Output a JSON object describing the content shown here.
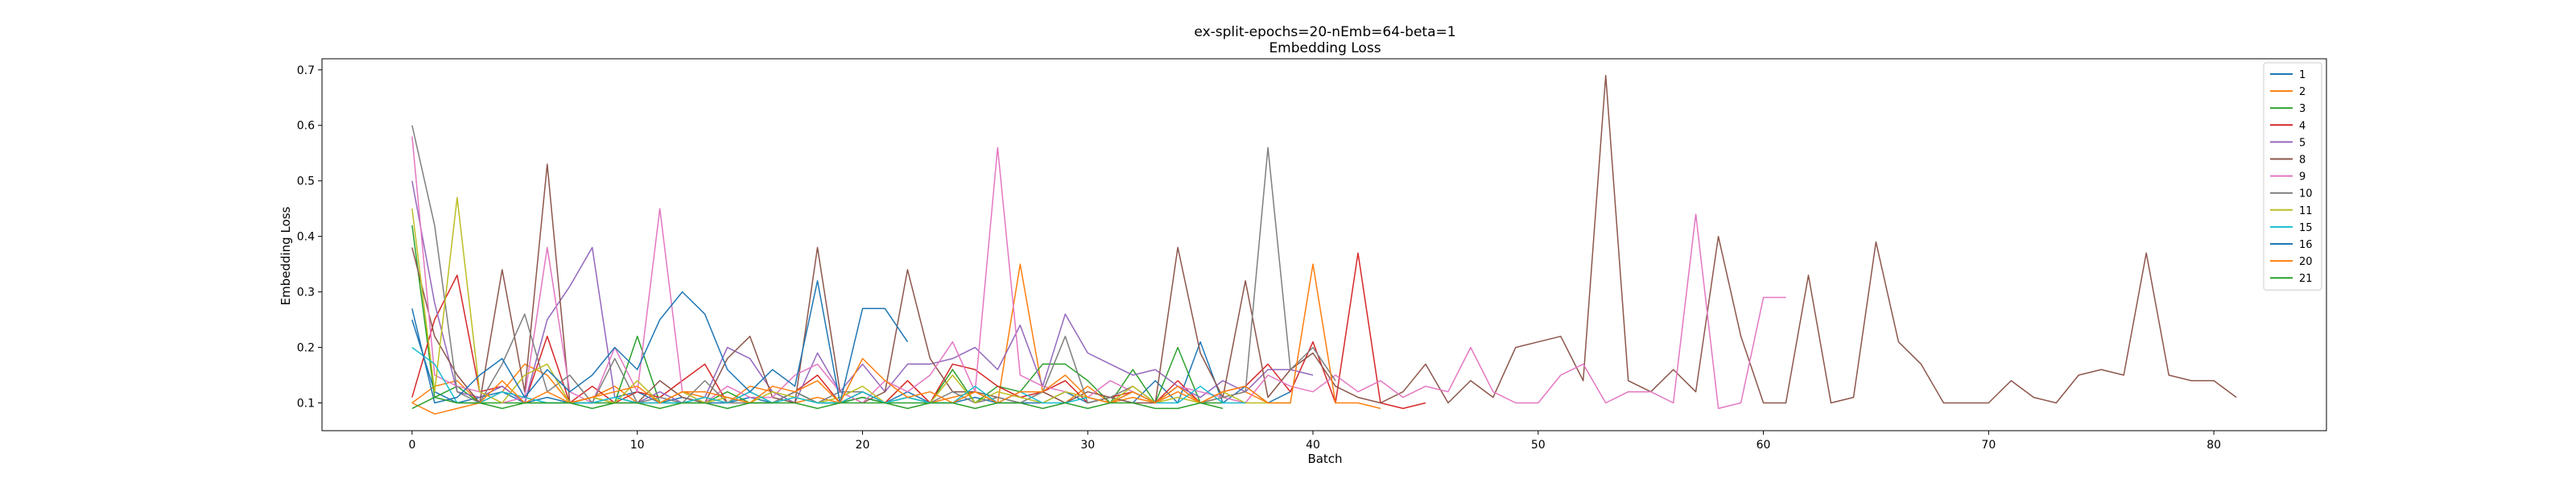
{
  "chart_data": {
    "type": "line",
    "title": "ex-split-epochs=20-nEmb=64-beta=1",
    "subtitle": "Embedding Loss",
    "xlabel": "Batch",
    "ylabel": "Embedding Loss",
    "xlim": [
      -4,
      85
    ],
    "ylim": [
      0.05,
      0.72
    ],
    "xticks": [
      0,
      10,
      20,
      30,
      40,
      50,
      60,
      70,
      80
    ],
    "yticks": [
      0.1,
      0.2,
      0.3,
      0.4,
      0.5,
      0.6,
      0.7
    ],
    "legend_position": "top-right",
    "series": [
      {
        "name": "1",
        "color": "#1f77b4",
        "values": [
          0.25,
          0.12,
          0.1,
          0.11,
          0.12,
          0.1,
          0.11,
          0.1,
          0.1,
          0.11,
          0.12,
          0.1,
          0.11,
          0.1,
          0.1,
          0.11,
          0.1,
          0.12,
          0.1,
          0.1,
          0.11,
          0.1,
          0.12,
          0.1,
          0.1,
          0.11,
          0.1,
          0.1,
          0.1,
          0.12,
          0.1,
          0.11,
          0.1,
          0.14,
          0.1,
          0.21,
          0.1,
          0.13,
          0.1,
          0.12
        ]
      },
      {
        "name": "2",
        "color": "#ff7f0e",
        "values": [
          0.1,
          0.13,
          0.14,
          0.1,
          0.12,
          0.17,
          0.15,
          0.1,
          0.11,
          0.13,
          0.1,
          0.1,
          0.12,
          0.11,
          0.1,
          0.13,
          0.12,
          0.1,
          0.11,
          0.1,
          0.12,
          0.1,
          0.14,
          0.1,
          0.11,
          0.12,
          0.1,
          0.35,
          0.12,
          0.1,
          0.13,
          0.1,
          0.11,
          0.1,
          0.12,
          0.1,
          0.11,
          0.12,
          0.1
        ]
      },
      {
        "name": "3",
        "color": "#2ca02c",
        "values": [
          0.42,
          0.11,
          0.13,
          0.1,
          0.1,
          0.1,
          0.1,
          0.1,
          0.1,
          0.1,
          0.22,
          0.1,
          0.1,
          0.1,
          0.12,
          0.1,
          0.1,
          0.12,
          0.1,
          0.1,
          0.11,
          0.1,
          0.1,
          0.1,
          0.16,
          0.1,
          0.13,
          0.12,
          0.17,
          0.17,
          0.14,
          0.1,
          0.16,
          0.1,
          0.2,
          0.1,
          0.1
        ]
      },
      {
        "name": "4",
        "color": "#d62728",
        "values": [
          0.11,
          0.25,
          0.33,
          0.12,
          0.13,
          0.1,
          0.22,
          0.1,
          0.13,
          0.1,
          0.12,
          0.11,
          0.14,
          0.17,
          0.1,
          0.12,
          0.1,
          0.12,
          0.15,
          0.1,
          0.12,
          0.1,
          0.14,
          0.1,
          0.17,
          0.16,
          0.13,
          0.11,
          0.12,
          0.14,
          0.1,
          0.11,
          0.12,
          0.1,
          0.14,
          0.1,
          0.12,
          0.13,
          0.17,
          0.12,
          0.21,
          0.1,
          0.37,
          0.1,
          0.09,
          0.1
        ]
      },
      {
        "name": "5",
        "color": "#9467bd",
        "values": [
          0.5,
          0.28,
          0.12,
          0.11,
          0.13,
          0.1,
          0.25,
          0.31,
          0.38,
          0.11,
          0.1,
          0.12,
          0.1,
          0.11,
          0.2,
          0.18,
          0.12,
          0.1,
          0.19,
          0.12,
          0.17,
          0.12,
          0.17,
          0.17,
          0.18,
          0.2,
          0.16,
          0.24,
          0.13,
          0.26,
          0.19,
          0.17,
          0.15,
          0.16,
          0.13,
          0.11,
          0.14,
          0.12,
          0.16,
          0.16,
          0.15
        ]
      },
      {
        "name": "8",
        "color": "#8c564b",
        "values": [
          0.38,
          0.22,
          0.15,
          0.1,
          0.34,
          0.12,
          0.53,
          0.1,
          0.11,
          0.1,
          0.1,
          0.14,
          0.11,
          0.1,
          0.18,
          0.22,
          0.11,
          0.1,
          0.38,
          0.12,
          0.1,
          0.12,
          0.34,
          0.18,
          0.12,
          0.12,
          0.11,
          0.1,
          0.12,
          0.1,
          0.12,
          0.11,
          0.1,
          0.1,
          0.38,
          0.19,
          0.11,
          0.32,
          0.11,
          0.16,
          0.19,
          0.13,
          0.11,
          0.1,
          0.12,
          0.17,
          0.1,
          0.14,
          0.11,
          0.2,
          0.21,
          0.22,
          0.14,
          0.69,
          0.14,
          0.12,
          0.16,
          0.12,
          0.4,
          0.22,
          0.1,
          0.1,
          0.33,
          0.1,
          0.11,
          0.39,
          0.21,
          0.17,
          0.1,
          0.1,
          0.1,
          0.14,
          0.11,
          0.1,
          0.15,
          0.16,
          0.15,
          0.37,
          0.15,
          0.14,
          0.14,
          0.11
        ]
      },
      {
        "name": "9",
        "color": "#e377c2",
        "values": [
          0.58,
          0.15,
          0.13,
          0.12,
          0.1,
          0.11,
          0.38,
          0.12,
          0.1,
          0.2,
          0.12,
          0.45,
          0.12,
          0.1,
          0.13,
          0.11,
          0.11,
          0.15,
          0.17,
          0.12,
          0.1,
          0.14,
          0.12,
          0.15,
          0.21,
          0.12,
          0.56,
          0.15,
          0.13,
          0.12,
          0.11,
          0.14,
          0.12,
          0.1,
          0.13,
          0.12,
          0.11,
          0.1,
          0.15,
          0.13,
          0.12,
          0.15,
          0.12,
          0.14,
          0.11,
          0.13,
          0.12,
          0.2,
          0.12,
          0.1,
          0.1,
          0.15,
          0.17,
          0.1,
          0.12,
          0.12,
          0.1,
          0.44,
          0.09,
          0.1,
          0.29,
          0.29
        ]
      },
      {
        "name": "10",
        "color": "#7f7f7f",
        "values": [
          0.6,
          0.42,
          0.12,
          0.1,
          0.17,
          0.26,
          0.12,
          0.15,
          0.1,
          0.18,
          0.1,
          0.11,
          0.1,
          0.14,
          0.1,
          0.1,
          0.1,
          0.12,
          0.1,
          0.12,
          0.12,
          0.1,
          0.11,
          0.1,
          0.12,
          0.1,
          0.11,
          0.1,
          0.12,
          0.22,
          0.1,
          0.11,
          0.13,
          0.1,
          0.13,
          0.1,
          0.11,
          0.12,
          0.56,
          0.16,
          0.2,
          0.14
        ]
      },
      {
        "name": "11",
        "color": "#bcbd22",
        "values": [
          0.45,
          0.12,
          0.47,
          0.12,
          0.1,
          0.15,
          0.17,
          0.1,
          0.11,
          0.1,
          0.14,
          0.1,
          0.12,
          0.1,
          0.11,
          0.1,
          0.12,
          0.11,
          0.1,
          0.11,
          0.13,
          0.1,
          0.11,
          0.1,
          0.15,
          0.1,
          0.12,
          0.11,
          0.1,
          0.12,
          0.11,
          0.1,
          0.13,
          0.1,
          0.11,
          0.1,
          0.12,
          0.1,
          0.1,
          0.1
        ]
      },
      {
        "name": "15",
        "color": "#17becf",
        "values": [
          0.2,
          0.17,
          0.1,
          0.1,
          0.12,
          0.11,
          0.1,
          0.1,
          0.1,
          0.11,
          0.1,
          0.1,
          0.1,
          0.11,
          0.1,
          0.12,
          0.1,
          0.11,
          0.1,
          0.1,
          0.12,
          0.1,
          0.11,
          0.1,
          0.1,
          0.13,
          0.1,
          0.12,
          0.1,
          0.1,
          0.11,
          0.1,
          0.12,
          0.1,
          0.1,
          0.13,
          0.1,
          0.1
        ]
      },
      {
        "name": "16",
        "color": "#1f77b4",
        "values": [
          0.27,
          0.1,
          0.11,
          0.15,
          0.18,
          0.11,
          0.16,
          0.12,
          0.15,
          0.2,
          0.16,
          0.25,
          0.3,
          0.26,
          0.16,
          0.12,
          0.16,
          0.13,
          0.32,
          0.1,
          0.27,
          0.27,
          0.21
        ]
      },
      {
        "name": "20",
        "color": "#ff7f0e",
        "values": [
          0.1,
          0.08,
          0.09,
          0.1,
          0.14,
          0.1,
          0.12,
          0.1,
          0.11,
          0.12,
          0.13,
          0.1,
          0.12,
          0.12,
          0.11,
          0.1,
          0.13,
          0.12,
          0.14,
          0.1,
          0.18,
          0.14,
          0.11,
          0.12,
          0.1,
          0.12,
          0.1,
          0.12,
          0.12,
          0.15,
          0.11,
          0.1,
          0.12,
          0.1,
          0.13,
          0.1,
          0.12,
          0.13,
          0.1,
          0.1,
          0.35,
          0.1,
          0.1,
          0.09
        ]
      },
      {
        "name": "21",
        "color": "#2ca02c",
        "values": [
          0.09,
          0.11,
          0.1,
          0.1,
          0.09,
          0.1,
          0.1,
          0.1,
          0.09,
          0.1,
          0.1,
          0.09,
          0.1,
          0.1,
          0.09,
          0.1,
          0.1,
          0.1,
          0.09,
          0.1,
          0.1,
          0.1,
          0.09,
          0.1,
          0.1,
          0.09,
          0.1,
          0.1,
          0.09,
          0.1,
          0.09,
          0.1,
          0.1,
          0.09,
          0.09,
          0.1,
          0.09
        ]
      }
    ]
  }
}
